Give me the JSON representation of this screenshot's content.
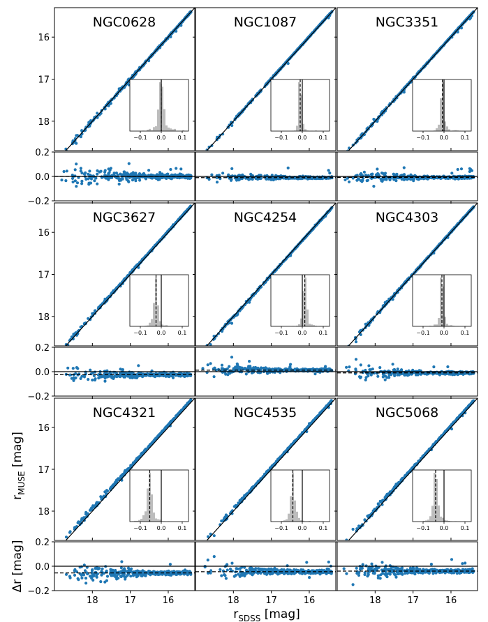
{
  "chart_data": {
    "type": "scatter",
    "xlabel": "r",
    "xlabel_sub": "SDSS",
    "xlabel_unit": " [mag]",
    "ylabel_main": "r",
    "ylabel_main_sub": "MUSE",
    "ylabel_main_unit": " [mag]",
    "ylabel_resid": "Δr [mag]",
    "x_range": [
      19.0,
      15.3
    ],
    "y_main_range": [
      18.7,
      15.3
    ],
    "y_resid_range": [
      -0.2,
      0.2
    ],
    "x_ticks": [
      18,
      17,
      16
    ],
    "x_tick_labels": [
      "18",
      "17",
      "16"
    ],
    "y_main_ticks": [
      16,
      17,
      18
    ],
    "y_main_tick_labels": [
      "16",
      "17",
      "18"
    ],
    "y_resid_ticks": [
      0.2,
      0.0,
      -0.2
    ],
    "y_resid_tick_labels": [
      "0.2",
      "0.0",
      "−0.2"
    ],
    "inset_x_range": [
      -0.15,
      0.13
    ],
    "inset_ticks": [
      -0.1,
      0.0,
      0.1
    ],
    "inset_tick_labels": [
      "−0.1",
      "0.0",
      "0.1"
    ],
    "colors": {
      "points": "#1f77b4",
      "hist": "#bdbdbd",
      "line": "#000000"
    },
    "panels": [
      {
        "name": "NGC0628",
        "offset": 0.0,
        "scatter": 0.022,
        "x_min": 18.82
      },
      {
        "name": "NGC1087",
        "offset": -0.01,
        "scatter": 0.01,
        "x_min": 18.8
      },
      {
        "name": "NGC3351",
        "offset": -0.008,
        "scatter": 0.012,
        "x_min": 18.8
      },
      {
        "name": "NGC3627",
        "offset": -0.025,
        "scatter": 0.015,
        "x_min": 18.85
      },
      {
        "name": "NGC4254",
        "offset": 0.012,
        "scatter": 0.013,
        "x_min": 18.85
      },
      {
        "name": "NGC4303",
        "offset": -0.01,
        "scatter": 0.014,
        "x_min": 18.85
      },
      {
        "name": "NGC4321",
        "offset": -0.055,
        "scatter": 0.02,
        "x_min": 18.85
      },
      {
        "name": "NGC4535",
        "offset": -0.045,
        "scatter": 0.017,
        "x_min": 18.85
      },
      {
        "name": "NGC5068",
        "offset": -0.04,
        "scatter": 0.018,
        "x_min": 18.85
      }
    ]
  }
}
